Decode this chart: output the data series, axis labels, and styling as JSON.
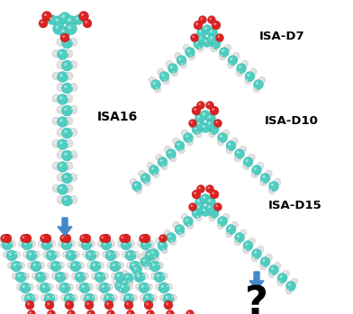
{
  "background_color": "#ffffff",
  "teal_color": "#4ECDC0",
  "teal_dark": "#2BA89E",
  "red_color": "#DD2222",
  "white_color": "#E0E0E0",
  "white_dark": "#AAAAAA",
  "arrow_color": "#4488CC",
  "label_ISA16": "ISA16",
  "label_D7": "ISA-D7",
  "label_D10": "ISA-D10",
  "label_D15": "ISA-D15",
  "question_mark": "?",
  "fig_width": 3.92,
  "fig_height": 3.49,
  "dpi": 100
}
